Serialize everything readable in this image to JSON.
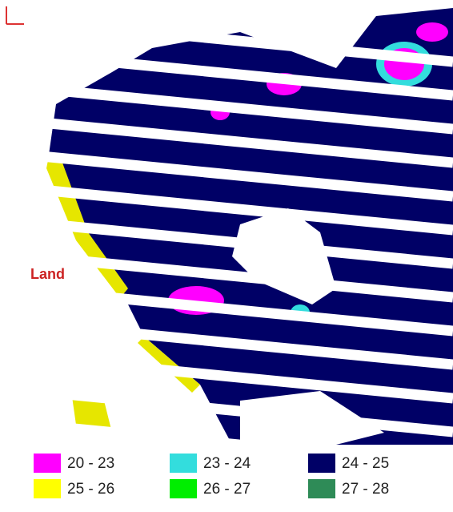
{
  "map": {
    "label": "Land",
    "legend": [
      {
        "label": "20 - 23",
        "color": "#ff00ff"
      },
      {
        "label": "23 - 24",
        "color": "#33dddd"
      },
      {
        "label": "24 - 25",
        "color": "#000066"
      },
      {
        "label": "25 - 26",
        "color": "#ffff00"
      },
      {
        "label": "26 - 27",
        "color": "#00ee00"
      },
      {
        "label": "27 - 28",
        "color": "#2e8b57"
      }
    ]
  }
}
